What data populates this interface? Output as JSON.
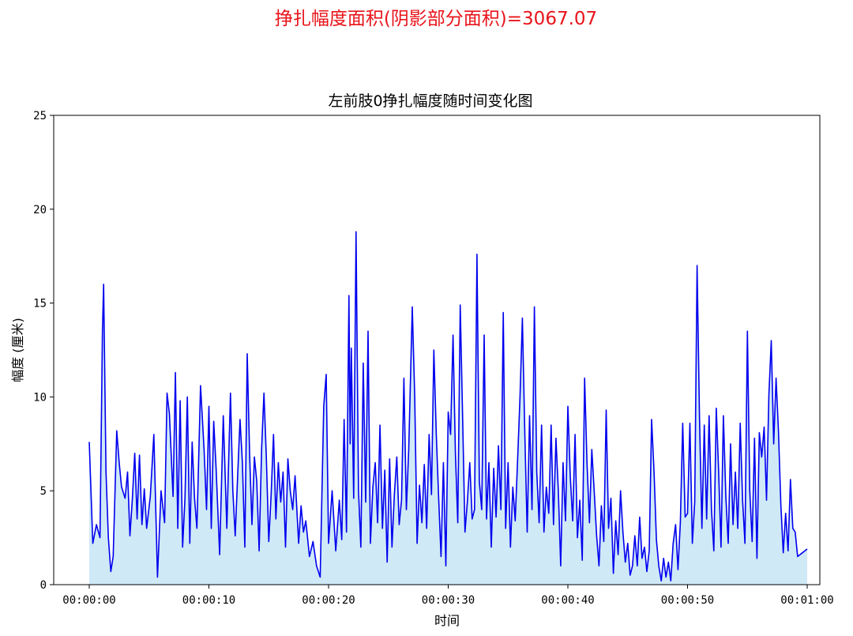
{
  "suptitle": "挣扎幅度面积(阴影部分面积)=3067.07",
  "colors": {
    "suptitle": "#e8141a",
    "line": "#0000ee",
    "fill": "#cfe9f7"
  },
  "chart_data": {
    "type": "area",
    "title": "左前肢0挣扎幅度随时间变化图",
    "xlabel": "时间",
    "ylabel": "幅度 (厘米)",
    "ylim": [
      0,
      25
    ],
    "xlim_seconds": [
      0,
      60
    ],
    "yticks": [
      "0",
      "5",
      "10",
      "15",
      "20",
      "25"
    ],
    "xticks": [
      "00:00:00",
      "00:00:10",
      "00:00:20",
      "00:00:30",
      "00:00:40",
      "00:00:50",
      "00:01:00"
    ],
    "grid": false,
    "series": [
      {
        "x_unit": "seconds",
        "points": [
          [
            0.0,
            7.6
          ],
          [
            0.3,
            2.2
          ],
          [
            0.6,
            3.2
          ],
          [
            0.9,
            2.5
          ],
          [
            1.1,
            13.5
          ],
          [
            1.2,
            16.0
          ],
          [
            1.4,
            6.0
          ],
          [
            1.6,
            2.5
          ],
          [
            1.8,
            0.7
          ],
          [
            2.0,
            1.5
          ],
          [
            2.3,
            8.2
          ],
          [
            2.5,
            6.5
          ],
          [
            2.7,
            5.2
          ],
          [
            3.0,
            4.6
          ],
          [
            3.2,
            6.0
          ],
          [
            3.4,
            2.6
          ],
          [
            3.6,
            4.5
          ],
          [
            3.8,
            7.0
          ],
          [
            4.0,
            3.5
          ],
          [
            4.2,
            6.9
          ],
          [
            4.4,
            3.2
          ],
          [
            4.6,
            5.1
          ],
          [
            4.8,
            3.0
          ],
          [
            5.1,
            4.7
          ],
          [
            5.4,
            8.0
          ],
          [
            5.7,
            0.4
          ],
          [
            6.0,
            5.0
          ],
          [
            6.3,
            3.3
          ],
          [
            6.5,
            10.2
          ],
          [
            6.7,
            9.1
          ],
          [
            7.0,
            4.7
          ],
          [
            7.2,
            11.3
          ],
          [
            7.4,
            3.0
          ],
          [
            7.6,
            9.8
          ],
          [
            7.8,
            2.0
          ],
          [
            8.0,
            4.6
          ],
          [
            8.2,
            10.0
          ],
          [
            8.4,
            2.2
          ],
          [
            8.6,
            7.6
          ],
          [
            8.8,
            4.6
          ],
          [
            9.0,
            3.0
          ],
          [
            9.3,
            10.6
          ],
          [
            9.6,
            7.2
          ],
          [
            9.8,
            4.0
          ],
          [
            10.0,
            9.5
          ],
          [
            10.2,
            3.0
          ],
          [
            10.4,
            8.7
          ],
          [
            10.6,
            6.2
          ],
          [
            10.9,
            1.6
          ],
          [
            11.2,
            9.0
          ],
          [
            11.5,
            3.0
          ],
          [
            11.8,
            10.2
          ],
          [
            12.0,
            5.0
          ],
          [
            12.2,
            2.6
          ],
          [
            12.4,
            5.8
          ],
          [
            12.6,
            8.8
          ],
          [
            12.8,
            6.5
          ],
          [
            13.0,
            2.0
          ],
          [
            13.2,
            12.3
          ],
          [
            13.4,
            7.0
          ],
          [
            13.6,
            3.2
          ],
          [
            13.8,
            6.8
          ],
          [
            14.0,
            5.5
          ],
          [
            14.2,
            1.8
          ],
          [
            14.4,
            7.2
          ],
          [
            14.6,
            10.2
          ],
          [
            14.8,
            6.8
          ],
          [
            15.0,
            2.3
          ],
          [
            15.2,
            4.8
          ],
          [
            15.4,
            8.0
          ],
          [
            15.6,
            3.5
          ],
          [
            15.8,
            6.5
          ],
          [
            16.0,
            4.4
          ],
          [
            16.2,
            6.0
          ],
          [
            16.4,
            2.0
          ],
          [
            16.6,
            6.7
          ],
          [
            16.8,
            5.0
          ],
          [
            17.0,
            4.0
          ],
          [
            17.2,
            5.8
          ],
          [
            17.5,
            2.2
          ],
          [
            17.7,
            4.2
          ],
          [
            17.9,
            2.8
          ],
          [
            18.1,
            3.4
          ],
          [
            18.4,
            1.5
          ],
          [
            18.7,
            2.3
          ],
          [
            19.0,
            1.0
          ],
          [
            19.3,
            0.4
          ],
          [
            19.6,
            9.5
          ],
          [
            19.8,
            11.2
          ],
          [
            20.0,
            2.2
          ],
          [
            20.3,
            5.0
          ],
          [
            20.6,
            1.8
          ],
          [
            20.9,
            4.5
          ],
          [
            21.1,
            2.4
          ],
          [
            21.3,
            8.8
          ],
          [
            21.5,
            2.8
          ],
          [
            21.7,
            15.4
          ],
          [
            21.8,
            7.5
          ],
          [
            21.9,
            12.6
          ],
          [
            22.1,
            4.6
          ],
          [
            22.3,
            18.8
          ],
          [
            22.5,
            5.0
          ],
          [
            22.7,
            2.0
          ],
          [
            22.9,
            11.8
          ],
          [
            23.1,
            4.4
          ],
          [
            23.3,
            13.5
          ],
          [
            23.5,
            2.2
          ],
          [
            23.7,
            5.2
          ],
          [
            23.9,
            6.5
          ],
          [
            24.1,
            3.3
          ],
          [
            24.3,
            8.5
          ],
          [
            24.5,
            3.0
          ],
          [
            24.7,
            6.1
          ],
          [
            24.9,
            1.2
          ],
          [
            25.1,
            6.7
          ],
          [
            25.3,
            2.0
          ],
          [
            25.5,
            4.8
          ],
          [
            25.7,
            6.8
          ],
          [
            25.9,
            3.2
          ],
          [
            26.1,
            4.5
          ],
          [
            26.3,
            11.0
          ],
          [
            26.5,
            4.0
          ],
          [
            26.7,
            7.2
          ],
          [
            27.0,
            14.8
          ],
          [
            27.2,
            10.0
          ],
          [
            27.4,
            2.2
          ],
          [
            27.6,
            5.3
          ],
          [
            27.8,
            3.3
          ],
          [
            28.0,
            6.4
          ],
          [
            28.2,
            3.0
          ],
          [
            28.4,
            8.0
          ],
          [
            28.6,
            4.8
          ],
          [
            28.8,
            12.5
          ],
          [
            29.0,
            8.0
          ],
          [
            29.2,
            4.6
          ],
          [
            29.4,
            1.5
          ],
          [
            29.6,
            6.5
          ],
          [
            29.8,
            1.0
          ],
          [
            30.0,
            9.2
          ],
          [
            30.2,
            8.0
          ],
          [
            30.4,
            13.3
          ],
          [
            30.6,
            7.0
          ],
          [
            30.8,
            3.3
          ],
          [
            31.0,
            14.9
          ],
          [
            31.2,
            9.0
          ],
          [
            31.4,
            2.8
          ],
          [
            31.6,
            4.4
          ],
          [
            31.8,
            6.5
          ],
          [
            32.0,
            3.5
          ],
          [
            32.2,
            4.0
          ],
          [
            32.4,
            17.6
          ],
          [
            32.6,
            5.5
          ],
          [
            32.8,
            4.0
          ],
          [
            33.0,
            13.3
          ],
          [
            33.2,
            3.5
          ],
          [
            33.4,
            6.5
          ],
          [
            33.6,
            2.0
          ],
          [
            33.8,
            6.2
          ],
          [
            34.0,
            3.6
          ],
          [
            34.2,
            7.4
          ],
          [
            34.4,
            4.0
          ],
          [
            34.6,
            14.5
          ],
          [
            34.8,
            3.0
          ],
          [
            35.0,
            6.5
          ],
          [
            35.2,
            2.0
          ],
          [
            35.4,
            5.2
          ],
          [
            35.6,
            3.4
          ],
          [
            35.8,
            6.7
          ],
          [
            36.0,
            10.0
          ],
          [
            36.2,
            14.2
          ],
          [
            36.4,
            8.0
          ],
          [
            36.6,
            2.8
          ],
          [
            36.8,
            9.0
          ],
          [
            37.0,
            4.0
          ],
          [
            37.2,
            14.8
          ],
          [
            37.4,
            6.0
          ],
          [
            37.6,
            3.3
          ],
          [
            37.8,
            8.5
          ],
          [
            38.0,
            2.8
          ],
          [
            38.2,
            5.2
          ],
          [
            38.4,
            3.8
          ],
          [
            38.6,
            8.5
          ],
          [
            38.8,
            3.2
          ],
          [
            39.0,
            7.8
          ],
          [
            39.2,
            5.0
          ],
          [
            39.4,
            1.0
          ],
          [
            39.6,
            6.5
          ],
          [
            39.8,
            3.4
          ],
          [
            40.0,
            9.5
          ],
          [
            40.2,
            5.8
          ],
          [
            40.4,
            3.4
          ],
          [
            40.6,
            8.0
          ],
          [
            40.8,
            2.5
          ],
          [
            41.0,
            4.5
          ],
          [
            41.2,
            1.3
          ],
          [
            41.4,
            11.0
          ],
          [
            41.6,
            6.5
          ],
          [
            41.8,
            3.3
          ],
          [
            42.0,
            7.2
          ],
          [
            42.2,
            5.0
          ],
          [
            42.4,
            2.6
          ],
          [
            42.6,
            1.0
          ],
          [
            42.8,
            4.2
          ],
          [
            43.0,
            2.3
          ],
          [
            43.2,
            9.3
          ],
          [
            43.4,
            3.0
          ],
          [
            43.6,
            4.6
          ],
          [
            43.8,
            0.6
          ],
          [
            44.0,
            3.4
          ],
          [
            44.2,
            1.6
          ],
          [
            44.4,
            5.0
          ],
          [
            44.6,
            2.8
          ],
          [
            44.8,
            1.2
          ],
          [
            45.0,
            2.2
          ],
          [
            45.2,
            0.5
          ],
          [
            45.4,
            1.0
          ],
          [
            45.6,
            2.6
          ],
          [
            45.8,
            1.0
          ],
          [
            46.0,
            3.6
          ],
          [
            46.2,
            1.4
          ],
          [
            46.4,
            2.0
          ],
          [
            46.6,
            0.7
          ],
          [
            46.8,
            1.8
          ],
          [
            47.0,
            8.8
          ],
          [
            47.2,
            6.0
          ],
          [
            47.4,
            2.4
          ],
          [
            47.6,
            1.0
          ],
          [
            47.8,
            0.2
          ],
          [
            48.0,
            1.4
          ],
          [
            48.2,
            0.4
          ],
          [
            48.4,
            1.2
          ],
          [
            48.6,
            0.2
          ],
          [
            48.8,
            2.2
          ],
          [
            49.0,
            3.2
          ],
          [
            49.2,
            0.8
          ],
          [
            49.4,
            3.3
          ],
          [
            49.6,
            8.6
          ],
          [
            49.8,
            3.6
          ],
          [
            50.0,
            3.8
          ],
          [
            50.2,
            8.6
          ],
          [
            50.4,
            2.2
          ],
          [
            50.6,
            4.4
          ],
          [
            50.8,
            17.0
          ],
          [
            51.0,
            9.0
          ],
          [
            51.2,
            3.0
          ],
          [
            51.4,
            8.5
          ],
          [
            51.6,
            3.5
          ],
          [
            51.8,
            9.0
          ],
          [
            52.0,
            4.0
          ],
          [
            52.2,
            1.8
          ],
          [
            52.4,
            9.4
          ],
          [
            52.6,
            6.0
          ],
          [
            52.8,
            2.0
          ],
          [
            53.0,
            9.0
          ],
          [
            53.2,
            4.7
          ],
          [
            53.4,
            2.2
          ],
          [
            53.6,
            7.5
          ],
          [
            53.8,
            3.2
          ],
          [
            54.0,
            6.0
          ],
          [
            54.2,
            3.0
          ],
          [
            54.4,
            8.6
          ],
          [
            54.6,
            4.5
          ],
          [
            54.8,
            2.2
          ],
          [
            55.0,
            13.5
          ],
          [
            55.2,
            5.0
          ],
          [
            55.4,
            2.3
          ],
          [
            55.6,
            7.8
          ],
          [
            55.8,
            1.4
          ],
          [
            56.0,
            8.1
          ],
          [
            56.2,
            6.8
          ],
          [
            56.4,
            8.4
          ],
          [
            56.6,
            4.5
          ],
          [
            56.8,
            10.1
          ],
          [
            57.0,
            13.0
          ],
          [
            57.2,
            7.5
          ],
          [
            57.4,
            11.0
          ],
          [
            57.6,
            8.2
          ],
          [
            57.8,
            4.2
          ],
          [
            58.0,
            1.7
          ],
          [
            58.2,
            3.8
          ],
          [
            58.4,
            1.8
          ],
          [
            58.6,
            5.6
          ],
          [
            58.8,
            3.0
          ],
          [
            59.0,
            2.8
          ],
          [
            59.2,
            1.5
          ],
          [
            60.0,
            1.9
          ]
        ]
      }
    ]
  }
}
